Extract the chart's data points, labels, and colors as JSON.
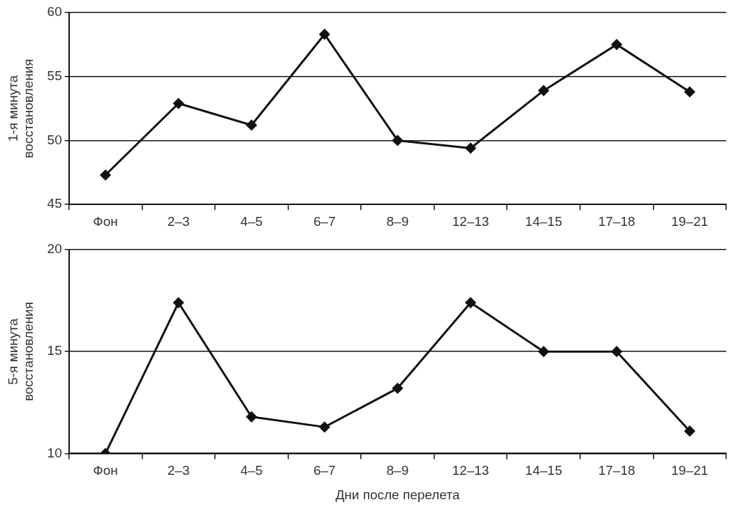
{
  "chart_data": [
    {
      "type": "line",
      "ylabel": "1-я минута\nвосстановления",
      "categories": [
        "Фон",
        "2–3",
        "4–5",
        "6–7",
        "8–9",
        "12–13",
        "14–15",
        "17–18",
        "19–21"
      ],
      "series": [
        {
          "color": "#111111",
          "values": [
            47.3,
            52.9,
            51.2,
            58.3,
            50.0,
            49.4,
            53.9,
            57.5,
            53.8
          ]
        }
      ],
      "ylim": [
        45,
        60
      ],
      "yticks": [
        45,
        50,
        55,
        60
      ],
      "grid": "y",
      "legend": false,
      "marker": "diamond",
      "line_style": "solid"
    },
    {
      "type": "line",
      "xlabel": "Дни после перелета",
      "ylabel": "5-я минута\nвосстановления",
      "categories": [
        "Фон",
        "2–3",
        "4–5",
        "6–7",
        "8–9",
        "12–13",
        "14–15",
        "17–18",
        "19–21"
      ],
      "series": [
        {
          "color": "#111111",
          "values": [
            10.0,
            17.4,
            11.8,
            11.3,
            13.2,
            17.4,
            15.0,
            15.0,
            11.1
          ]
        }
      ],
      "ylim": [
        10,
        20
      ],
      "yticks": [
        10,
        15,
        20
      ],
      "grid": "y",
      "legend": false,
      "marker": "diamond",
      "line_style": "solid"
    }
  ]
}
